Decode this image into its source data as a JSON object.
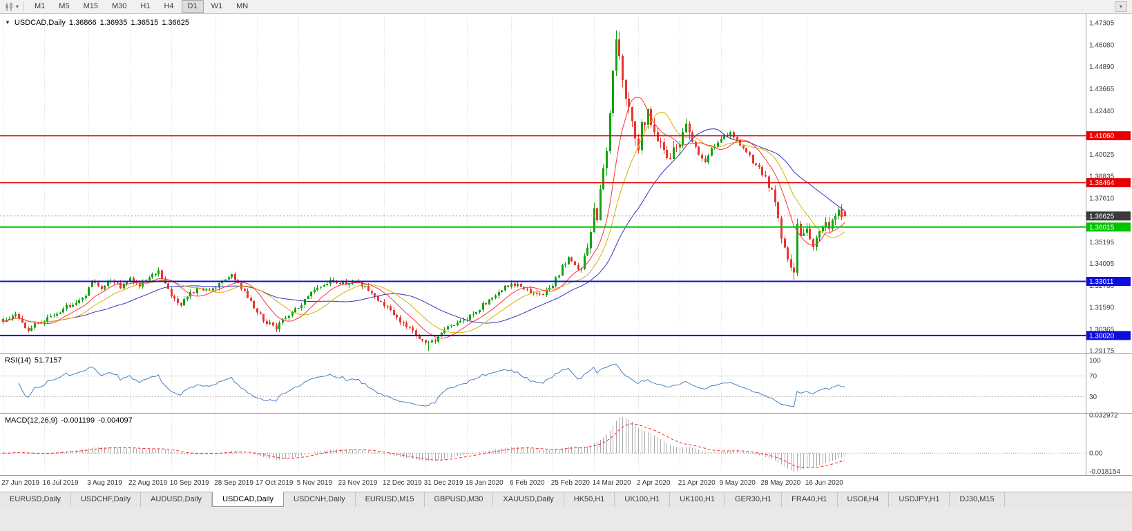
{
  "icons": {
    "one_click": "▼",
    "chart_menu": "▾",
    "toolbar_overflow": "▾"
  },
  "toolbar": {
    "timeframes": [
      "M1",
      "M5",
      "M15",
      "M30",
      "H1",
      "H4",
      "D1",
      "W1",
      "MN"
    ],
    "active_timeframe": "D1"
  },
  "chart": {
    "symbol_title": "USDCAD,Daily",
    "open": "1.36866",
    "high": "1.36935",
    "low": "1.36515",
    "close": "1.36625"
  },
  "rsi_panel": {
    "name": "RSI(14)",
    "value": "51.7157"
  },
  "macd_panel": {
    "name": "MACD(12,26,9)",
    "value_main": "-0.001199",
    "value_signal": "-0.004097"
  },
  "tabs": [
    "EURUSD,Daily",
    "USDCHF,Daily",
    "AUDUSD,Daily",
    "USDCAD,Daily",
    "USDCNH,Daily",
    "EURUSD,M15",
    "GBPUSD,M30",
    "XAUUSD,Daily",
    "HK50,H1",
    "UK100,H1",
    "UK100,H1",
    "GER30,H1",
    "FRA40,H1",
    "USOil,H4",
    "USDJPY,H1",
    "DJ30,M15"
  ],
  "active_tab_index": 3,
  "chart_data": {
    "type": "candlestick",
    "title": "USDCAD,Daily",
    "symbol": "USDCAD",
    "timeframe": "Daily",
    "x_labels": [
      "27 Jun 2019",
      "16 Jul 2019",
      "3 Aug 2019",
      "22 Aug 2019",
      "10 Sep 2019",
      "28 Sep 2019",
      "17 Oct 2019",
      "5 Nov 2019",
      "23 Nov 2019",
      "12 Dec 2019",
      "31 Dec 2019",
      "18 Jan 2020",
      "6 Feb 2020",
      "25 Feb 2020",
      "14 Mar 2020",
      "2 Apr 2020",
      "21 Apr 2020",
      "9 May 2020",
      "28 May 2020",
      "16 Jun 2020"
    ],
    "y_ticks": [
      1.47305,
      1.4608,
      1.4489,
      1.43665,
      1.4244,
      1.40025,
      1.38835,
      1.3761,
      1.35195,
      1.34005,
      1.3278,
      1.3159,
      1.30365,
      1.29175
    ],
    "price_range": {
      "top": 1.478,
      "bottom": 1.291
    },
    "candle_count": 266,
    "candle_spacing": 4.6,
    "up_color": "#12a312",
    "down_color": "#e8362e",
    "last_ohlc": {
      "open": 1.36866,
      "high": 1.36935,
      "low": 1.36515,
      "close": 1.36625
    },
    "price_anchors": [
      [
        0,
        1.3085
      ],
      [
        4,
        1.311
      ],
      [
        8,
        1.3035
      ],
      [
        13,
        1.309
      ],
      [
        18,
        1.314
      ],
      [
        23,
        1.319
      ],
      [
        26,
        1.322
      ],
      [
        28,
        1.33
      ],
      [
        31,
        1.326
      ],
      [
        34,
        1.3305
      ],
      [
        37,
        1.327
      ],
      [
        40,
        1.331
      ],
      [
        43,
        1.328
      ],
      [
        46,
        1.333
      ],
      [
        49,
        1.336
      ],
      [
        51,
        1.33
      ],
      [
        53,
        1.322
      ],
      [
        56,
        1.318
      ],
      [
        59,
        1.323
      ],
      [
        62,
        1.327
      ],
      [
        65,
        1.324
      ],
      [
        67,
        1.326
      ],
      [
        70,
        1.332
      ],
      [
        72,
        1.3345
      ],
      [
        75,
        1.327
      ],
      [
        78,
        1.319
      ],
      [
        80,
        1.313
      ],
      [
        83,
        1.307
      ],
      [
        86,
        1.3045
      ],
      [
        89,
        1.31
      ],
      [
        93,
        1.316
      ],
      [
        96,
        1.323
      ],
      [
        99,
        1.327
      ],
      [
        103,
        1.331
      ],
      [
        106,
        1.33
      ],
      [
        109,
        1.329
      ],
      [
        112,
        1.33
      ],
      [
        115,
        1.325
      ],
      [
        120,
        1.317
      ],
      [
        123,
        1.312
      ],
      [
        126,
        1.307
      ],
      [
        129,
        1.302
      ],
      [
        132,
        1.2975
      ],
      [
        134,
        1.2955
      ],
      [
        137,
        1.2995
      ],
      [
        140,
        1.305
      ],
      [
        143,
        1.308
      ],
      [
        146,
        1.3095
      ],
      [
        149,
        1.314
      ],
      [
        152,
        1.3185
      ],
      [
        155,
        1.323
      ],
      [
        158,
        1.327
      ],
      [
        160,
        1.329
      ],
      [
        163,
        1.328
      ],
      [
        166,
        1.3245
      ],
      [
        169,
        1.3225
      ],
      [
        173,
        1.328
      ],
      [
        176,
        1.338
      ],
      [
        178,
        1.343
      ],
      [
        180,
        1.339
      ],
      [
        182,
        1.335
      ],
      [
        184,
        1.348
      ],
      [
        185,
        1.36
      ],
      [
        186,
        1.373
      ],
      [
        187,
        1.365
      ],
      [
        188,
        1.381
      ],
      [
        189,
        1.39
      ],
      [
        190,
        1.399
      ],
      [
        191,
        1.424
      ],
      [
        192,
        1.449
      ],
      [
        193,
        1.464
      ],
      [
        194,
        1.452
      ],
      [
        195,
        1.444
      ],
      [
        196,
        1.434
      ],
      [
        197,
        1.425
      ],
      [
        198,
        1.416
      ],
      [
        199,
        1.406
      ],
      [
        200,
        1.4
      ],
      [
        201,
        1.416
      ],
      [
        203,
        1.4235
      ],
      [
        205,
        1.414
      ],
      [
        207,
        1.406
      ],
      [
        209,
        1.398
      ],
      [
        211,
        1.403
      ],
      [
        213,
        1.409
      ],
      [
        215,
        1.414
      ],
      [
        217,
        1.408
      ],
      [
        219,
        1.401
      ],
      [
        221,
        1.396
      ],
      [
        223,
        1.403
      ],
      [
        226,
        1.409
      ],
      [
        229,
        1.412
      ],
      [
        232,
        1.406
      ],
      [
        235,
        1.399
      ],
      [
        237,
        1.394
      ],
      [
        239,
        1.39
      ],
      [
        241,
        1.382
      ],
      [
        243,
        1.376
      ],
      [
        244,
        1.365
      ],
      [
        245,
        1.356
      ],
      [
        246,
        1.348
      ],
      [
        247,
        1.342
      ],
      [
        248,
        1.338
      ],
      [
        249,
        1.3355
      ],
      [
        250,
        1.362
      ],
      [
        251,
        1.356
      ],
      [
        253,
        1.36
      ],
      [
        255,
        1.348
      ],
      [
        257,
        1.356
      ],
      [
        259,
        1.364
      ],
      [
        260,
        1.359
      ],
      [
        262,
        1.366
      ],
      [
        263,
        1.37
      ],
      [
        264,
        1.364
      ],
      [
        265,
        1.36625
      ]
    ],
    "special_wicks": [
      [
        134,
        "low",
        1.2918
      ],
      [
        193,
        "high",
        1.4688
      ],
      [
        249,
        "low",
        1.3308
      ]
    ],
    "horizontal_lines": [
      {
        "price": 1.4106,
        "label": "1.41060",
        "color": "#e60000",
        "width": 1.5
      },
      {
        "price": 1.38464,
        "label": "1.38464",
        "color": "#e60000",
        "width": 1.5
      },
      {
        "price": 1.36015,
        "label": "1.36015",
        "color": "#00c400",
        "width": 2
      },
      {
        "price": 1.33011,
        "label": "1.33011",
        "color": "#0e0edc",
        "width": 2
      },
      {
        "price": 1.3002,
        "label": "1.30020",
        "color": "#0e0edc",
        "width": 2
      }
    ],
    "current_price": {
      "value": 1.36625,
      "label": "1.36625",
      "badge_color": "#3a3a3a"
    },
    "moving_averages": [
      {
        "period": 34,
        "color": "#3333bb"
      },
      {
        "period": 18,
        "color": "#d8b000"
      },
      {
        "period": 10,
        "color": "#ff3232"
      }
    ],
    "rsi": {
      "period": 14,
      "last_value": 51.7157,
      "color": "#4a7ec0",
      "levels": [
        70,
        30
      ],
      "scale_labels": [
        {
          "text": "100",
          "value": 100
        },
        {
          "text": "70",
          "value": 70
        },
        {
          "text": "30",
          "value": 30
        }
      ]
    },
    "macd": {
      "fast": 12,
      "slow": 26,
      "signal_period": 9,
      "last_main": -0.001199,
      "last_signal": -0.004097,
      "histogram_color": "#a8a8a8",
      "signal_color": "#ff2222",
      "scale_top": 0.0335,
      "scale_bottom": -0.019,
      "scale_labels": [
        {
          "text": "0.032972",
          "value": 0.032972
        },
        {
          "text": "0.00",
          "value": 0
        },
        {
          "text": "-0.018154",
          "value": -0.018154
        }
      ]
    }
  }
}
